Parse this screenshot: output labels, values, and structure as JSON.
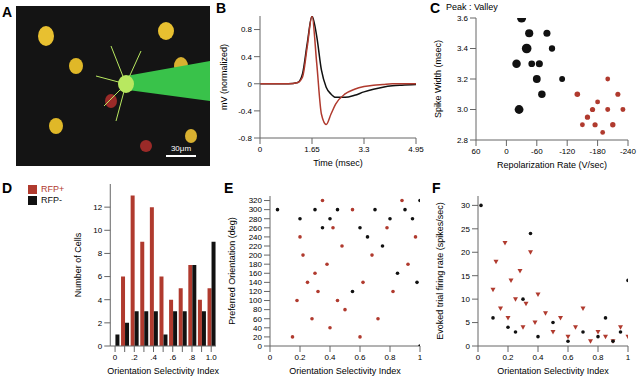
{
  "chart_data": [
    {
      "type": "image",
      "title": "A",
      "scale_label": "30μm"
    },
    {
      "type": "line",
      "title": "B",
      "xlabel": "Time (msec)",
      "ylabel": "mV (normalized)",
      "x": [
        0,
        0.3,
        0.6,
        0.9,
        1.2,
        1.35,
        1.5,
        1.65,
        1.8,
        1.95,
        2.1,
        2.25,
        2.4,
        2.7,
        3.0,
        3.3,
        3.6,
        3.9,
        4.2,
        4.5,
        4.95
      ],
      "series": [
        {
          "color": "#111111",
          "values": [
            0,
            0,
            0,
            0,
            0.02,
            0.15,
            0.6,
            1,
            0.7,
            0.2,
            -0.05,
            -0.15,
            -0.2,
            -0.2,
            -0.17,
            -0.12,
            -0.08,
            -0.05,
            -0.03,
            -0.02,
            -0.01
          ]
        },
        {
          "color": "#b03a2e",
          "values": [
            0,
            0,
            0,
            0,
            0.02,
            0.1,
            0.55,
            1,
            0.3,
            -0.45,
            -0.6,
            -0.45,
            -0.3,
            -0.15,
            -0.08,
            -0.04,
            -0.02,
            -0.01,
            0,
            0,
            0
          ]
        }
      ],
      "xlim": [
        0,
        4.95
      ],
      "xticks": [
        0,
        1.65,
        3.3,
        4.95
      ],
      "ylim": [
        -0.8,
        1
      ],
      "yticks": [
        -0.8,
        -0.4,
        0,
        0.4,
        0.8
      ]
    },
    {
      "type": "scatter",
      "title": "C",
      "xlabel": "Repolarization Rate (V/sec)",
      "ylabel": "Spike Width (msec)",
      "size_label": "Peak : Valley",
      "xlim": [
        60,
        -240
      ],
      "xticks": [
        60,
        0,
        -60,
        -120,
        -180,
        -240
      ],
      "ylim": [
        2.8,
        3.6
      ],
      "yticks": [
        2.8,
        {
          "value": 3,
          "label": "3.0"
        },
        3.2,
        3.4,
        3.6
      ],
      "size_lim": [
        0,
        10
      ],
      "series": [
        {
          "color": "#b03a2e",
          "marker": "circle",
          "x": [
            -150,
            -170,
            -190,
            -200,
            -210,
            -220,
            -180,
            -160,
            -230,
            -140,
            -200,
            -175
          ],
          "y": [
            2.9,
            3.0,
            2.85,
            3.0,
            2.9,
            3.1,
            3.05,
            2.95,
            3.0,
            3.1,
            3.2,
            2.9
          ],
          "sizes": [
            1.5,
            1.8,
            1.4,
            1.6,
            2.0,
            1.7,
            1.5,
            1.9,
            1.6,
            2.2,
            1.4,
            1.8
          ]
        },
        {
          "color": "#111111",
          "marker": "circle",
          "x": [
            -20,
            -40,
            -60,
            -80,
            -30,
            -50,
            -70,
            -90,
            -110,
            -45,
            -25,
            -65
          ],
          "y": [
            3.3,
            3.4,
            3.2,
            3.5,
            3.6,
            3.3,
            3.1,
            3.4,
            3.2,
            3.5,
            3.0,
            3.3
          ],
          "sizes": [
            6,
            8,
            5,
            4,
            7,
            3.5,
            4.5,
            3,
            2.5,
            5.5,
            6.5,
            4
          ]
        }
      ]
    },
    {
      "type": "bar",
      "title": "D",
      "xlabel": "Orientation Selectivity Index",
      "ylabel": "Number of Cells",
      "legend": "upper left",
      "categories": [
        "0",
        null,
        ".2",
        null,
        ".4",
        null,
        ".6",
        null,
        ".8",
        null,
        "1.0"
      ],
      "series": [
        {
          "name": "RFP+",
          "color": "#b03a2e",
          "values": [
            0,
            6,
            13,
            9,
            12,
            6,
            4,
            5,
            7,
            4,
            5
          ]
        },
        {
          "name": "RFP-",
          "color": "#111111",
          "values": [
            1,
            2,
            3,
            3,
            3,
            1,
            3,
            3,
            7,
            3,
            9
          ]
        }
      ],
      "ylim": [
        0,
        14
      ],
      "yticks": [
        0,
        2,
        4,
        6,
        8,
        10,
        12
      ]
    },
    {
      "type": "scatter",
      "title": "E",
      "xlabel": "Orientation Selectivity Index",
      "ylabel": "Preferred Orientation (deg)",
      "xlim": [
        0,
        1
      ],
      "xticks": [
        0,
        0.2,
        0.4,
        0.6,
        0.8,
        1
      ],
      "ylim": [
        0,
        330
      ],
      "yticks": [
        0,
        20,
        40,
        60,
        80,
        100,
        120,
        140,
        160,
        180,
        200,
        220,
        240,
        260,
        280,
        300,
        320
      ],
      "series": [
        {
          "color": "#b03a2e",
          "marker": "circle",
          "x": [
            0.15,
            0.18,
            0.2,
            0.22,
            0.25,
            0.28,
            0.3,
            0.32,
            0.35,
            0.38,
            0.4,
            0.42,
            0.45,
            0.48,
            0.5,
            0.55,
            0.6,
            0.62,
            0.68,
            0.72,
            0.78,
            0.82,
            0.88,
            0.92,
            0.97
          ],
          "y": [
            20,
            100,
            240,
            200,
            140,
            60,
            160,
            120,
            320,
            180,
            40,
            260,
            100,
            220,
            80,
            300,
            20,
            140,
            200,
            60,
            260,
            120,
            320,
            180,
            240
          ]
        },
        {
          "color": "#111111",
          "marker": "circle",
          "x": [
            0.05,
            0.2,
            0.3,
            0.35,
            0.4,
            0.45,
            0.6,
            0.65,
            0.7,
            0.75,
            0.8,
            0.85,
            0.9,
            0.95,
            1.0,
            1.0,
            0.98,
            0.55
          ],
          "y": [
            300,
            280,
            300,
            260,
            280,
            300,
            260,
            240,
            300,
            220,
            280,
            160,
            300,
            280,
            320,
            0,
            140,
            120
          ]
        }
      ]
    },
    {
      "type": "scatter",
      "title": "F",
      "xlabel": "Orientation Selectivity Index",
      "ylabel": "Evoked trial firing rate (spikes/sec)",
      "xlim": [
        0,
        1
      ],
      "xticks": [
        0,
        0.2,
        0.4,
        0.6,
        0.8,
        1
      ],
      "ylim": [
        0,
        32
      ],
      "yticks": [
        0,
        5,
        10,
        15,
        20,
        25,
        30
      ],
      "series": [
        {
          "color": "#b03a2e",
          "marker": "triangle",
          "x": [
            0.1,
            0.12,
            0.15,
            0.18,
            0.2,
            0.22,
            0.25,
            0.28,
            0.3,
            0.32,
            0.35,
            0.38,
            0.4,
            0.45,
            0.5,
            0.55,
            0.6,
            0.65,
            0.7,
            0.75,
            0.8,
            0.85,
            0.9,
            0.95,
            1.0
          ],
          "y": [
            12,
            18,
            8,
            22,
            6,
            14,
            10,
            16,
            4,
            9,
            20,
            5,
            11,
            7,
            3,
            6,
            2,
            4,
            8,
            1,
            3,
            2,
            1,
            4,
            2
          ]
        },
        {
          "color": "#111111",
          "marker": "circle",
          "x": [
            0.02,
            0.1,
            0.2,
            0.25,
            0.3,
            0.35,
            0.4,
            0.5,
            0.6,
            0.7,
            0.8,
            0.85,
            0.9,
            0.95,
            1.0
          ],
          "y": [
            30,
            6,
            4,
            3,
            10,
            24,
            2,
            5,
            1,
            3,
            2,
            6,
            1,
            3,
            14
          ]
        }
      ]
    }
  ]
}
